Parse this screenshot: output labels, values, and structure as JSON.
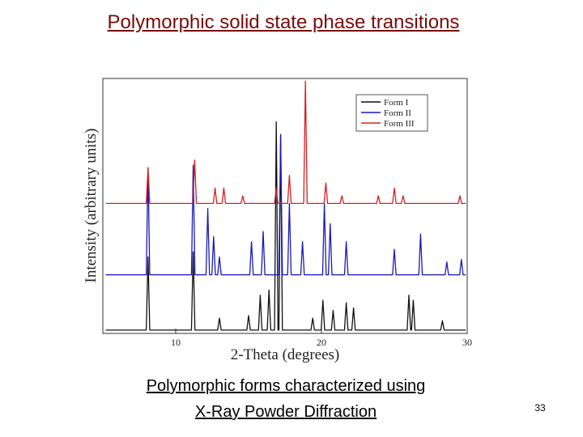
{
  "title": "Polymorphic solid state phase transitions",
  "caption": [
    "Polymorphic forms characterized using",
    "X-Ray Powder Diffraction"
  ],
  "page_number": "33",
  "chart_data": {
    "type": "line",
    "xlabel": "2-Theta (degrees)",
    "ylabel": "Intensity (arbitrary units)",
    "xlim": [
      5,
      30
    ],
    "xticks": [
      10,
      20,
      30
    ],
    "ylim": [
      0,
      100
    ],
    "legend": "upper right",
    "series": [
      {
        "name": "Form I",
        "color": "#111111",
        "x": [
          5.2,
          7.98,
          8.1,
          8.22,
          11.08,
          11.2,
          11.32,
          12.88,
          13,
          13.12,
          14.88,
          15,
          15.12,
          15.68,
          15.8,
          15.92,
          16.28,
          16.4,
          16.52,
          16.78,
          16.9,
          17.02,
          17.08,
          17.2,
          17.32,
          19.28,
          19.4,
          19.52,
          19.98,
          20.1,
          20.22,
          20.68,
          20.8,
          20.92,
          21.58,
          21.7,
          21.82,
          22.08,
          22.2,
          22.32,
          25.88,
          26,
          26.12,
          26.18,
          26.3,
          26.42,
          28.18,
          28.3,
          28.42,
          29.9
        ],
        "values": [
          1.3,
          1.3,
          30,
          1.3,
          1.3,
          32,
          1.3,
          1.3,
          6,
          1.3,
          1.3,
          7,
          1.3,
          1.3,
          15,
          1.3,
          1.3,
          17,
          1.3,
          1.3,
          83,
          1.3,
          1.3,
          78,
          1.3,
          1.3,
          6,
          1.3,
          1.3,
          13,
          1.3,
          1.3,
          9,
          1.3,
          1.3,
          12,
          1.3,
          1.3,
          10,
          1.3,
          1.3,
          15,
          1.3,
          1.3,
          13,
          1.3,
          1.3,
          5,
          1.3,
          1.3
        ]
      },
      {
        "name": "Form II",
        "color": "#1a1ab8",
        "x": [
          5.2,
          7.98,
          8.1,
          8.22,
          11.08,
          11.2,
          11.32,
          12.08,
          12.2,
          12.32,
          12.48,
          12.6,
          12.72,
          12.88,
          13,
          13.12,
          15.08,
          15.2,
          15.32,
          15.88,
          16,
          16.12,
          17.08,
          17.2,
          17.32,
          17.68,
          17.8,
          17.92,
          18.58,
          18.7,
          18.82,
          20.08,
          20.2,
          20.32,
          20.48,
          20.6,
          20.72,
          21.58,
          21.7,
          21.82,
          24.88,
          25,
          25.12,
          26.68,
          26.8,
          26.92,
          28.48,
          28.6,
          28.72,
          29.48,
          29.6,
          29.72,
          29.9
        ],
        "values": [
          23,
          23,
          65,
          23,
          23,
          66,
          23,
          23,
          49,
          23,
          23,
          38,
          23,
          23,
          30,
          23,
          23,
          36,
          23,
          23,
          40,
          23,
          23,
          78,
          23,
          23,
          51,
          23,
          23,
          36,
          23,
          23,
          51,
          23,
          23,
          43,
          23,
          23,
          36,
          23,
          23,
          33,
          23,
          23,
          39,
          23,
          23,
          28,
          23,
          23,
          29,
          23,
          23
        ]
      },
      {
        "name": "Form III",
        "color": "#d42020",
        "x": [
          5.2,
          7.98,
          8.1,
          8.22,
          11.18,
          11.3,
          11.42,
          12.58,
          12.7,
          12.82,
          13.18,
          13.3,
          13.42,
          14.48,
          14.6,
          14.72,
          16.78,
          16.9,
          17.02,
          17.68,
          17.8,
          17.92,
          18.78,
          18.9,
          19.02,
          20.18,
          20.3,
          20.42,
          21.28,
          21.4,
          21.52,
          23.78,
          23.9,
          24.02,
          24.88,
          25,
          25.12,
          25.48,
          25.6,
          25.72,
          29.38,
          29.5,
          29.62,
          29.9
        ],
        "values": [
          51,
          51,
          65,
          51,
          51,
          68,
          51,
          51,
          57,
          51,
          51,
          57,
          51,
          51,
          54,
          51,
          51,
          57,
          51,
          51,
          62,
          51,
          51,
          99,
          51,
          51,
          59,
          51,
          51,
          54,
          51,
          51,
          54,
          51,
          51,
          57,
          51,
          51,
          54,
          51,
          51,
          54,
          51,
          51
        ]
      }
    ]
  }
}
